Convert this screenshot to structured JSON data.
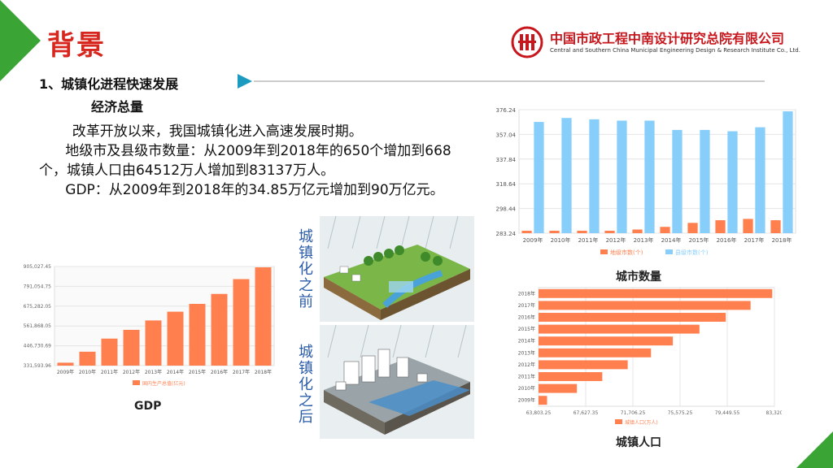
{
  "header": {
    "title": "背景",
    "org_cn": "中国市政工程中南设计研究总院有限公司",
    "org_en": "Central and Southern China Municipal Engineering Design & Research Institute Co., Ltd."
  },
  "section": {
    "heading": "1、城镇化进程快速发展",
    "subheading": "经济总量"
  },
  "paragraphs": [
    "改革开放以来，我国城镇化进入高速发展时期。",
    "地级市及县级市数量：从2009年到2018年的650个增加到668个，城镇人口由64512万人增加到83137万人。",
    "GDP：从2009年到2018年的34.85万亿元增加到90万亿元。"
  ],
  "captions": {
    "gdp": "GDP",
    "cities": "城市数量",
    "population": "城镇人口",
    "before": "城镇化之前",
    "after": "城镇化之后"
  },
  "colors": {
    "title_red": "#d7261e",
    "accent_green": "#3aa535",
    "bar_orange": "#ff7f4f",
    "bar_blue": "#87cefa"
  },
  "chart_data": [
    {
      "id": "gdp",
      "type": "bar",
      "categories": [
        "2009年",
        "2010年",
        "2011年",
        "2012年",
        "2013年",
        "2014年",
        "2015年",
        "2016年",
        "2017年",
        "2018年"
      ],
      "series": [
        {
          "name": "国内生产总值(亿元)",
          "values": [
            348500,
            412119,
            487940,
            538580,
            592963,
            643563,
            688858,
            746395,
            832035,
            900309
          ]
        }
      ],
      "yticks": [
        "331,593.96",
        "446,730.69",
        "561,868.05",
        "675,282.05",
        "791,054.75",
        "905,027.45"
      ],
      "ylim": [
        331593.96,
        905027.45
      ],
      "legend": "bottom"
    },
    {
      "id": "cities",
      "type": "bar",
      "categories": [
        "2009年",
        "2010年",
        "2011年",
        "2012年",
        "2013年",
        "2014年",
        "2015年",
        "2016年",
        "2017年",
        "2018年"
      ],
      "series": [
        {
          "name": "地级市数(个)",
          "values": [
            283,
            283,
            284,
            285,
            286,
            288,
            291,
            293,
            294,
            293
          ]
        },
        {
          "name": "县级市数(个)",
          "values": [
            367,
            370,
            369,
            368,
            368,
            361,
            361,
            360,
            363,
            375
          ]
        }
      ],
      "yticks": [
        "283.24",
        "298.44",
        "318.64",
        "337.84",
        "357.04",
        "376.24"
      ],
      "ylim": [
        283.24,
        376.24
      ],
      "legend": "bottom"
    },
    {
      "id": "population",
      "type": "bar",
      "orientation": "horizontal",
      "categories": [
        "2009年",
        "2010年",
        "2011年",
        "2012年",
        "2013年",
        "2014年",
        "2015年",
        "2016年",
        "2017年",
        "2018年"
      ],
      "series": [
        {
          "name": "城镇人口(万人)",
          "values": [
            64512,
            66978,
            69079,
            71182,
            73111,
            74916,
            77116,
            79298,
            81347,
            83137
          ]
        }
      ],
      "xticks": [
        "63,803.25",
        "67,627.35",
        "71,706.25",
        "75,575.25",
        "79,449.55",
        "83,320"
      ],
      "xlim": [
        63803.25,
        83320
      ],
      "legend": "bottom"
    }
  ]
}
